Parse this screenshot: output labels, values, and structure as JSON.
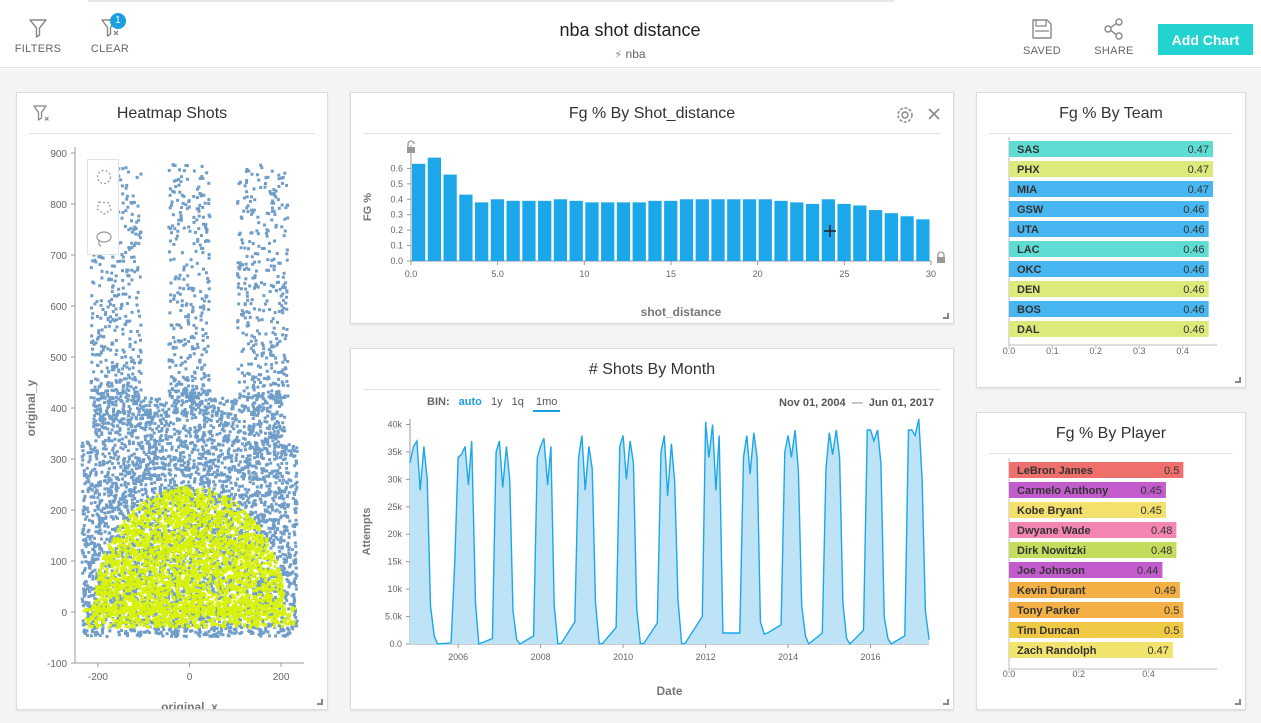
{
  "toolbar": {
    "filters_label": "FILTERS",
    "clear_label": "CLEAR",
    "clear_badge": "1",
    "saved_label": "SAVED",
    "share_label": "SHARE",
    "add_chart_label": "Add Chart"
  },
  "dashboard": {
    "title": "nba shot distance",
    "source": "nba",
    "source_icon": "lightning-icon"
  },
  "colors": {
    "accent": "#1ba7ea",
    "teal": "#22d3d0",
    "bar_blue": "#1ba7ea"
  },
  "panels": {
    "heatmap": {
      "title": "Heatmap Shots",
      "tools": [
        "circle-select-icon",
        "polygon-select-icon",
        "lasso-select-icon"
      ]
    },
    "fg_distance": {
      "title": "Fg % By Shot_distance"
    },
    "shots_month": {
      "title": "# Shots By Month",
      "bin_label": "BIN:",
      "bin_options": [
        "auto",
        "1y",
        "1q",
        "1mo"
      ],
      "bin_selected": "auto",
      "bin_underlined": "1mo",
      "range_start": "Nov 01, 2004",
      "range_sep": "—",
      "range_end": "Jun 01, 2017"
    },
    "fg_team": {
      "title": "Fg % By Team"
    },
    "fg_player": {
      "title": "Fg % By Player"
    }
  },
  "chart_data": [
    {
      "id": "heatmap",
      "type": "scatter",
      "title": "Heatmap Shots",
      "xlabel": "original_x",
      "ylabel": "original_y",
      "xlim": [
        -250,
        250
      ],
      "ylim": [
        -100,
        900
      ],
      "x_ticks": [
        "-200",
        "0",
        "200"
      ],
      "y_ticks": [
        "-100",
        "0",
        "100",
        "200",
        "300",
        "400",
        "500",
        "600",
        "700",
        "800",
        "900"
      ],
      "series": [
        {
          "color": "#6f9dc8"
        },
        {
          "color": "#d8f20a"
        }
      ]
    },
    {
      "id": "fg_distance",
      "type": "bar",
      "title": "Fg % By Shot_distance",
      "xlabel": "shot_distance",
      "ylabel": "FG %",
      "xlim": [
        0,
        30
      ],
      "ylim": [
        0,
        0.7
      ],
      "x_ticks": [
        "0.0",
        "5.0",
        "10",
        "15",
        "20",
        "25",
        "30"
      ],
      "y_ticks": [
        "0.0",
        "0.1",
        "0.2",
        "0.3",
        "0.4",
        "0.5",
        "0.6"
      ],
      "values": [
        0.63,
        0.67,
        0.56,
        0.43,
        0.38,
        0.4,
        0.39,
        0.39,
        0.39,
        0.4,
        0.39,
        0.38,
        0.38,
        0.38,
        0.38,
        0.39,
        0.39,
        0.4,
        0.4,
        0.4,
        0.4,
        0.4,
        0.4,
        0.39,
        0.38,
        0.37,
        0.4,
        0.37,
        0.36,
        0.33,
        0.31,
        0.29,
        0.27
      ]
    },
    {
      "id": "shots_month",
      "type": "area",
      "title": "# Shots By Month",
      "xlabel": "Date",
      "ylabel": "Attempts",
      "xlim": [
        2004.833,
        2017.417
      ],
      "ylim": [
        0,
        41000
      ],
      "x_ticks": [
        "2006",
        "2008",
        "2010",
        "2012",
        "2014",
        "2016"
      ],
      "y_ticks": [
        "0.0",
        "5.0k",
        "10k",
        "15k",
        "20k",
        "25k",
        "30k",
        "35k",
        "40k"
      ],
      "x": [
        2004.83,
        2004.92,
        2005.0,
        2005.08,
        2005.17,
        2005.25,
        2005.33,
        2005.42,
        2005.5,
        2005.83,
        2005.92,
        2006.0,
        2006.08,
        2006.17,
        2006.25,
        2006.33,
        2006.42,
        2006.5,
        2006.83,
        2006.92,
        2007.0,
        2007.08,
        2007.17,
        2007.25,
        2007.33,
        2007.42,
        2007.5,
        2007.83,
        2007.92,
        2008.0,
        2008.08,
        2008.17,
        2008.25,
        2008.33,
        2008.42,
        2008.5,
        2008.83,
        2008.92,
        2009.0,
        2009.08,
        2009.17,
        2009.25,
        2009.33,
        2009.42,
        2009.5,
        2009.83,
        2009.92,
        2010.0,
        2010.08,
        2010.17,
        2010.25,
        2010.33,
        2010.42,
        2010.5,
        2010.83,
        2010.92,
        2011.0,
        2011.08,
        2011.17,
        2011.25,
        2011.33,
        2011.42,
        2011.5,
        2011.92,
        2012.0,
        2012.08,
        2012.17,
        2012.25,
        2012.33,
        2012.42,
        2012.5,
        2012.83,
        2012.92,
        2013.0,
        2013.08,
        2013.17,
        2013.25,
        2013.33,
        2013.42,
        2013.5,
        2013.83,
        2013.92,
        2014.0,
        2014.08,
        2014.17,
        2014.25,
        2014.33,
        2014.42,
        2014.5,
        2014.83,
        2014.92,
        2015.0,
        2015.08,
        2015.17,
        2015.25,
        2015.33,
        2015.42,
        2015.5,
        2015.83,
        2015.92,
        2016.0,
        2016.08,
        2016.17,
        2016.25,
        2016.33,
        2016.42,
        2016.5,
        2016.83,
        2016.92,
        2017.0,
        2017.08,
        2017.17,
        2017.25,
        2017.33,
        2017.42
      ],
      "values": [
        33000,
        36000,
        37000,
        28000,
        36000,
        30000,
        7000,
        1500,
        0,
        200,
        15000,
        34000,
        34500,
        36000,
        29000,
        37000,
        7500,
        0,
        1000,
        35000,
        37000,
        28500,
        36000,
        30000,
        6000,
        800,
        0,
        1500,
        34000,
        36000,
        37500,
        29000,
        36000,
        7000,
        0,
        100,
        4000,
        34000,
        38000,
        28000,
        36000,
        32000,
        7500,
        0,
        100,
        3000,
        36000,
        38000,
        30000,
        37000,
        33000,
        6500,
        0,
        100,
        3800,
        35000,
        38000,
        27000,
        36500,
        29500,
        8000,
        0,
        100,
        5000,
        40500,
        34000,
        40000,
        28000,
        38000,
        2000,
        2000,
        2000,
        34000,
        38000,
        31000,
        38500,
        34000,
        4000,
        1800,
        2000,
        3500,
        35000,
        38000,
        34000,
        39000,
        31500,
        7000,
        1500,
        0,
        2000,
        32000,
        38500,
        34500,
        39000,
        34000,
        7500,
        1000,
        0,
        2500,
        39000,
        39000,
        37000,
        39000,
        33000,
        5000,
        1000,
        0,
        1500,
        39000,
        39000,
        38000,
        41000,
        30000,
        6000,
        800
      ]
    },
    {
      "id": "fg_team",
      "type": "bar",
      "orientation": "horizontal",
      "title": "Fg % By Team",
      "xlim": [
        0,
        0.47
      ],
      "x_ticks": [
        "0.0",
        "0.1",
        "0.2",
        "0.3",
        "0.4"
      ],
      "categories": [
        "SAS",
        "PHX",
        "MIA",
        "GSW",
        "UTA",
        "LAC",
        "OKC",
        "DEN",
        "BOS",
        "DAL"
      ],
      "values": [
        0.47,
        0.47,
        0.47,
        0.46,
        0.46,
        0.46,
        0.46,
        0.46,
        0.46,
        0.46
      ],
      "bar_colors": [
        "#5fddd5",
        "#dde97a",
        "#48b6f0",
        "#48b6f0",
        "#48b6f0",
        "#5fddd5",
        "#48b6f0",
        "#dde97a",
        "#48b6f0",
        "#dde97a"
      ]
    },
    {
      "id": "fg_player",
      "type": "bar",
      "orientation": "horizontal",
      "title": "Fg % By Player",
      "xlim": [
        0,
        0.585
      ],
      "x_ticks": [
        "0.0",
        "0.2",
        "0.4"
      ],
      "categories": [
        "LeBron James",
        "Carmelo Anthony",
        "Kobe Bryant",
        "Dwyane Wade",
        "Dirk Nowitzki",
        "Joe Johnson",
        "Kevin Durant",
        "Tony Parker",
        "Tim Duncan",
        "Zach Randolph"
      ],
      "values": [
        0.5,
        0.45,
        0.45,
        0.48,
        0.48,
        0.44,
        0.49,
        0.5,
        0.5,
        0.47
      ],
      "bar_colors": [
        "#ef6f6c",
        "#c25ccd",
        "#f4e06d",
        "#f285b1",
        "#c4dc5c",
        "#c25ccd",
        "#f3b045",
        "#f3b045",
        "#f0c944",
        "#f2e36d"
      ]
    }
  ]
}
